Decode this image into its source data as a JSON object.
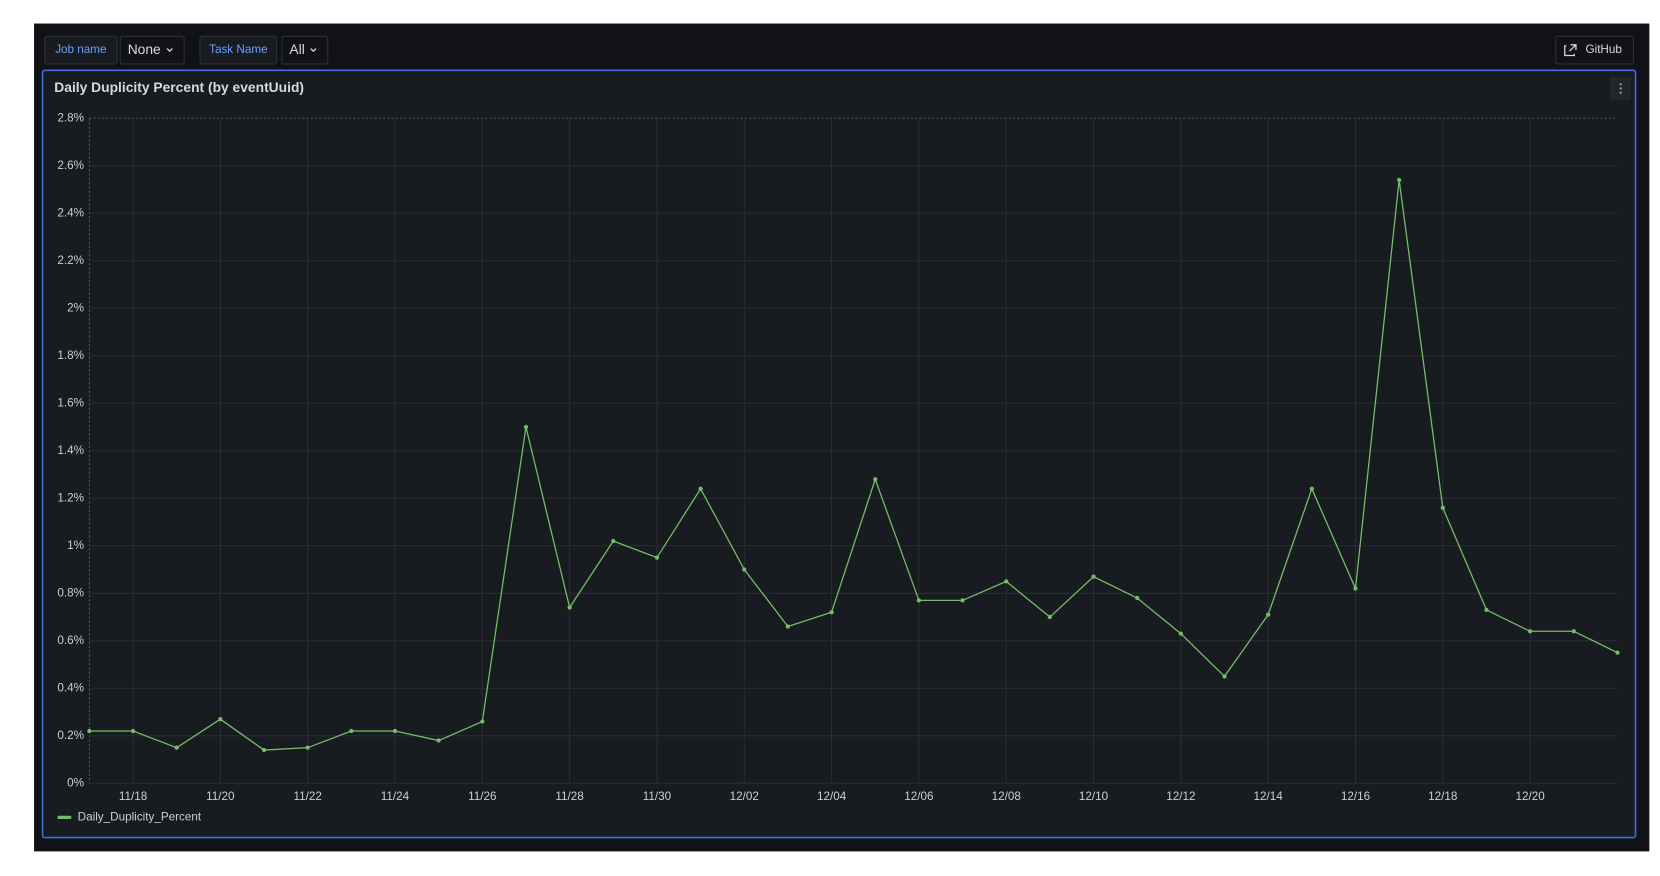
{
  "controls": {
    "job_label": "Job name",
    "job_value": "None",
    "task_label": "Task Name",
    "task_value": "All",
    "link": "GitHub"
  },
  "chart_data": {
    "type": "line",
    "title": "Daily Duplicity Percent (by eventUuid)",
    "categories": [
      null,
      "11/18",
      null,
      "11/20",
      null,
      "11/22",
      null,
      "11/24",
      null,
      "11/26",
      null,
      "11/28",
      null,
      "11/30",
      null,
      "12/02",
      null,
      "12/04",
      null,
      "12/06",
      null,
      "12/08",
      null,
      "12/10",
      null,
      "12/12",
      null,
      "12/14",
      null,
      "12/16",
      null,
      "12/18",
      null,
      "12/20",
      null,
      null
    ],
    "series": [
      {
        "name": "Daily_Duplicity_Percent",
        "color": "#73bf69",
        "values": [
          0.22,
          0.22,
          0.15,
          0.27,
          0.14,
          0.15,
          0.22,
          0.22,
          0.18,
          0.26,
          1.5,
          0.74,
          1.02,
          0.95,
          1.24,
          0.9,
          0.66,
          0.72,
          1.28,
          0.77,
          0.77,
          0.85,
          0.7,
          0.87,
          0.78,
          0.63,
          0.45,
          0.71,
          1.24,
          0.82,
          2.54,
          1.16,
          0.73,
          0.64,
          0.64,
          0.55
        ]
      }
    ],
    "ylim": [
      0,
      2.8
    ],
    "yticks": [
      {
        "value": 0,
        "label": "0%"
      },
      {
        "value": 0.2,
        "label": "0.2%"
      },
      {
        "value": 0.4,
        "label": "0.4%"
      },
      {
        "value": 0.6,
        "label": "0.6%"
      },
      {
        "value": 0.8,
        "label": "0.8%"
      },
      {
        "value": 1,
        "label": "1%"
      },
      {
        "value": 1.2,
        "label": "1.2%"
      },
      {
        "value": 1.4,
        "label": "1.4%"
      },
      {
        "value": 1.6,
        "label": "1.6%"
      },
      {
        "value": 1.8,
        "label": "1.8%"
      },
      {
        "value": 2,
        "label": "2%"
      },
      {
        "value": 2.2,
        "label": "2.2%"
      },
      {
        "value": 2.4,
        "label": "2.4%"
      },
      {
        "value": 2.6,
        "label": "2.6%"
      },
      {
        "value": 2.8,
        "label": "2.8%"
      }
    ],
    "grid": true
  }
}
